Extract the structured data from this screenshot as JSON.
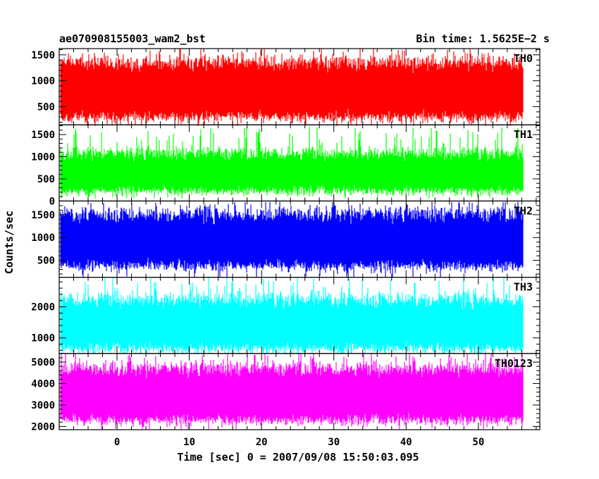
{
  "header": {
    "title": "ae070908155003_wam2_bst",
    "bin_time": "Bin time: 1.5625E−2 s"
  },
  "chart_data": {
    "type": "line",
    "xlabel": "Time [sec] 0 = 2007/09/08 15:50:03.095",
    "ylabel": "Counts/sec",
    "xlim": [
      -8,
      58.5
    ],
    "x_range": [
      -7.8,
      56.2
    ],
    "x_ticks": [
      0,
      10,
      20,
      30,
      40,
      50
    ],
    "bin_time": 0.015625,
    "panels": [
      {
        "name": "TH0",
        "color": "#ff0000",
        "ylim": [
          150,
          1620
        ],
        "y_ticks": [
          500,
          1000,
          1500
        ],
        "base": 820,
        "spread": 230,
        "low": 300,
        "high": 1350,
        "min": 130,
        "max": 1620
      },
      {
        "name": "TH1",
        "color": "#00ff00",
        "ylim": [
          0,
          1720
        ],
        "y_ticks": [
          0,
          500,
          1000,
          1500
        ],
        "base": 650,
        "spread": 220,
        "low": 230,
        "high": 1080,
        "min": 60,
        "max": 1680
      },
      {
        "name": "TH2",
        "color": "#0000ff",
        "ylim": [
          130,
          1800
        ],
        "y_ticks": [
          500,
          1000,
          1500
        ],
        "base": 950,
        "spread": 260,
        "low": 380,
        "high": 1520,
        "min": 130,
        "max": 1780
      },
      {
        "name": "TH3",
        "color": "#00ffff",
        "ylim": [
          500,
          2950
        ],
        "y_ticks": [
          1000,
          2000
        ],
        "base": 1480,
        "spread": 380,
        "low": 650,
        "high": 2250,
        "min": 500,
        "max": 2950
      },
      {
        "name": "TH0123",
        "color": "#ff00ff",
        "ylim": [
          1850,
          5400
        ],
        "y_ticks": [
          2000,
          3000,
          4000,
          5000
        ],
        "base": 3450,
        "spread": 520,
        "low": 2300,
        "high": 4700,
        "min": 1880,
        "max": 5400
      }
    ]
  }
}
